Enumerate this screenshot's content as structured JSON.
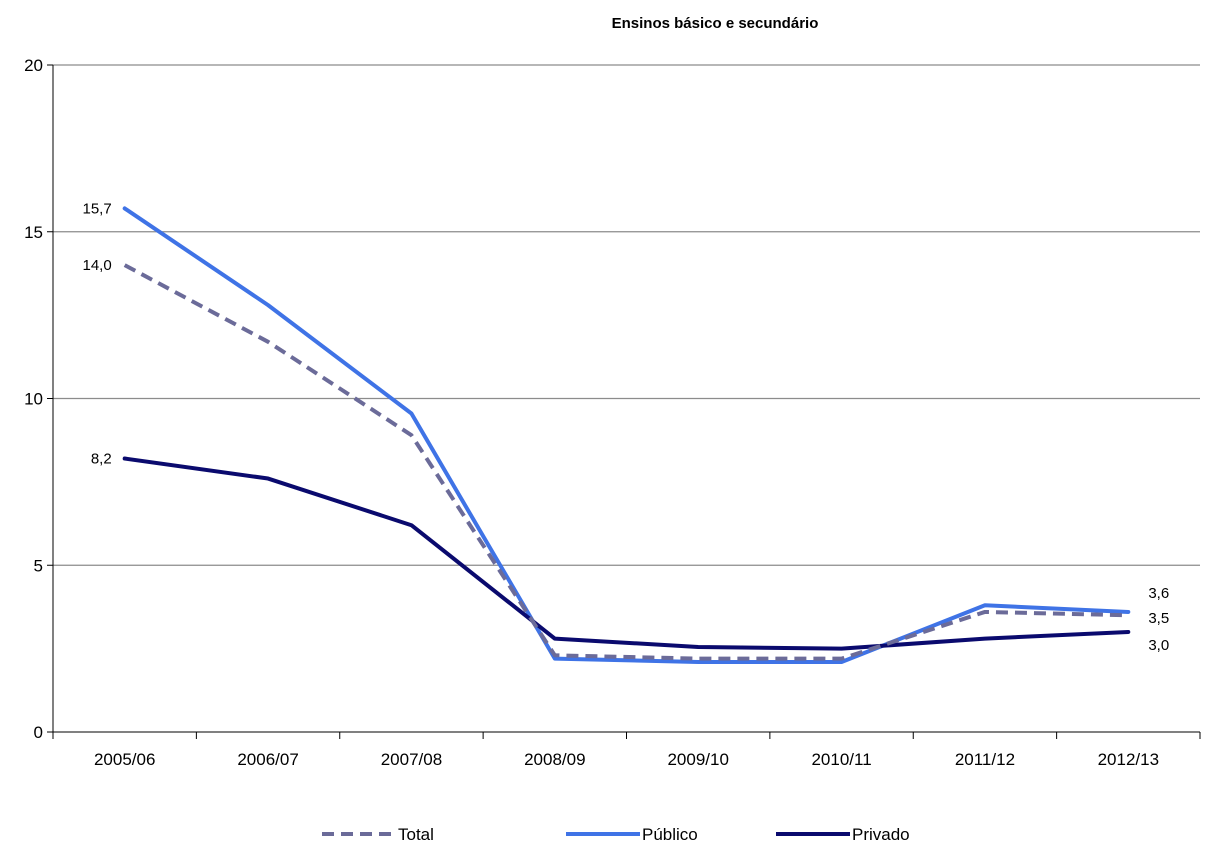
{
  "chart_data": {
    "type": "line",
    "title": "Ensinos básico e secundário",
    "xlabel": "",
    "ylabel": "",
    "categories": [
      "2005/06",
      "2006/07",
      "2007/08",
      "2008/09",
      "2009/10",
      "2010/11",
      "2011/12",
      "2012/13"
    ],
    "ylim": [
      0,
      20
    ],
    "yticks": [
      0,
      5,
      10,
      15,
      20
    ],
    "grid": true,
    "legend_position": "bottom",
    "series": [
      {
        "name": "Total",
        "values": [
          14.0,
          11.7,
          8.9,
          2.3,
          2.2,
          2.2,
          3.6,
          3.5
        ],
        "color": "#6b6b99",
        "style": "dashed",
        "first_label": "14,0",
        "last_label": "3,5"
      },
      {
        "name": "Público",
        "values": [
          15.7,
          12.8,
          9.55,
          2.2,
          2.1,
          2.1,
          3.8,
          3.6
        ],
        "color": "#3f73e6",
        "style": "solid",
        "first_label": "15,7",
        "last_label": "3,6"
      },
      {
        "name": "Privado",
        "values": [
          8.2,
          7.6,
          6.2,
          2.8,
          2.55,
          2.5,
          2.8,
          3.0
        ],
        "color": "#0a0a6e",
        "style": "solid",
        "first_label": "8,2",
        "last_label": "3,0"
      }
    ]
  }
}
